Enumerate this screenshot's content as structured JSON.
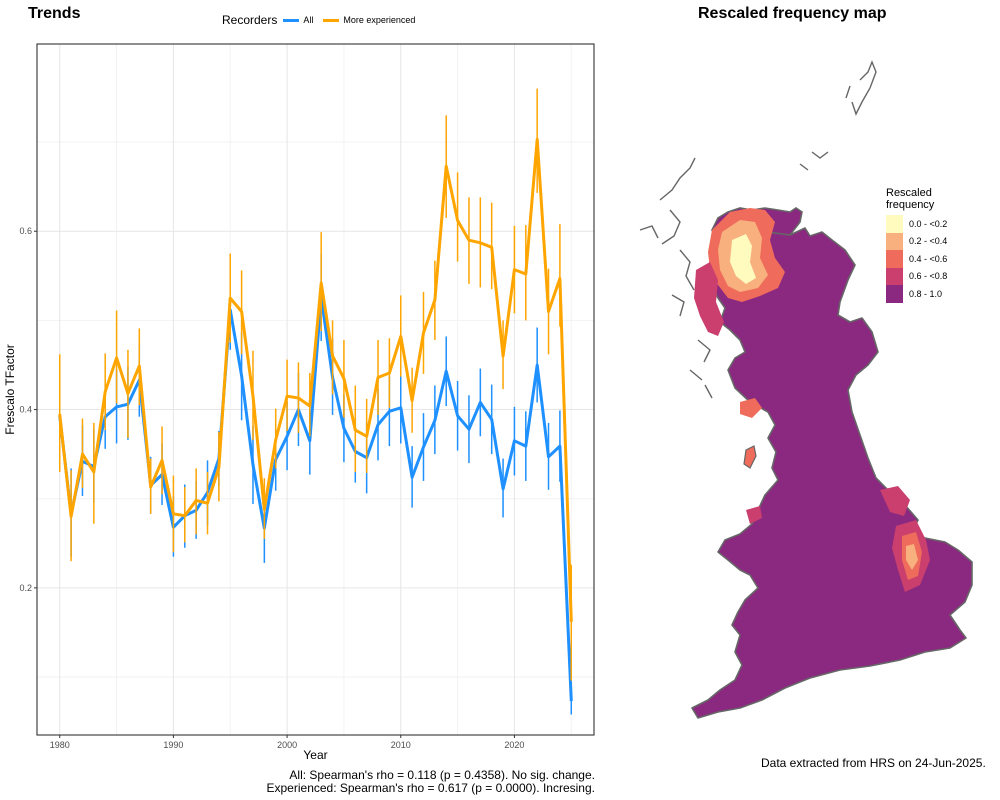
{
  "left_title": "Trends",
  "right_title": "Rescaled frequency map",
  "legend": {
    "title": "Recorders",
    "items": [
      {
        "label": "All",
        "color": "#1E90FF"
      },
      {
        "label": "More experienced",
        "color": "#FFA500"
      }
    ]
  },
  "footnotes": {
    "all": "All: Spearman's rho = 0.118 (p = 0.4358). No sig. change.",
    "experienced": "Experienced: Spearman's rho = 0.617 (p = 0.0000). Incresing."
  },
  "data_extracted": "Data extracted from HRS on 24-Jun-2025.",
  "map_legend": {
    "title_line1": "Rescaled",
    "title_line2": "frequency",
    "items": [
      {
        "label": "0.0 - <0.2",
        "color": "#FFFBBE"
      },
      {
        "label": "0.2 - <0.4",
        "color": "#F9B07F"
      },
      {
        "label": "0.4 - <0.6",
        "color": "#EF6B5B"
      },
      {
        "label": "0.6 - <0.8",
        "color": "#CA3F6E"
      },
      {
        "label": "0.8 - 1.0",
        "color": "#8B2981"
      }
    ]
  },
  "chart_data": {
    "type": "line",
    "title": "Trends",
    "xlabel": "Year",
    "ylabel": "Frescalo TFactor",
    "xlim": [
      1978,
      2027
    ],
    "ylim": [
      0.035,
      0.81
    ],
    "xticks": [
      1980,
      1990,
      2000,
      2010,
      2020
    ],
    "yticks": [
      0.2,
      0.4,
      0.6
    ],
    "grid": true,
    "legend_position": "top",
    "x": [
      1980,
      1981,
      1982,
      1983,
      1984,
      1985,
      1986,
      1987,
      1988,
      1989,
      1990,
      1991,
      1992,
      1993,
      1994,
      1995,
      1996,
      1997,
      1998,
      1999,
      2000,
      2001,
      2002,
      2003,
      2004,
      2005,
      2006,
      2007,
      2008,
      2009,
      2010,
      2011,
      2012,
      2013,
      2014,
      2015,
      2016,
      2017,
      2018,
      2019,
      2020,
      2021,
      2022,
      2023,
      2024,
      2025
    ],
    "series": [
      {
        "name": "All",
        "color": "#1E90FF",
        "values": [
          0.393,
          0.283,
          0.342,
          0.336,
          0.392,
          0.403,
          0.406,
          0.433,
          0.315,
          0.327,
          0.268,
          0.281,
          0.287,
          0.307,
          0.345,
          0.512,
          0.438,
          0.338,
          0.267,
          0.344,
          0.37,
          0.4,
          0.365,
          0.526,
          0.436,
          0.379,
          0.353,
          0.346,
          0.383,
          0.398,
          0.402,
          0.324,
          0.358,
          0.388,
          0.443,
          0.393,
          0.378,
          0.408,
          0.389,
          0.311,
          0.365,
          0.359,
          0.45,
          0.347,
          0.359,
          0.073
        ],
        "lower": [
          0.333,
          0.235,
          0.303,
          0.296,
          0.356,
          0.362,
          0.366,
          0.392,
          0.283,
          0.293,
          0.235,
          0.245,
          0.255,
          0.27,
          0.314,
          0.467,
          0.388,
          0.294,
          0.228,
          0.309,
          0.332,
          0.359,
          0.327,
          0.477,
          0.394,
          0.341,
          0.318,
          0.306,
          0.343,
          0.359,
          0.362,
          0.29,
          0.32,
          0.35,
          0.404,
          0.354,
          0.34,
          0.37,
          0.35,
          0.279,
          0.326,
          0.32,
          0.408,
          0.31,
          0.319,
          0.058
        ],
        "upper": [
          0.454,
          0.334,
          0.382,
          0.378,
          0.428,
          0.445,
          0.448,
          0.474,
          0.347,
          0.362,
          0.303,
          0.316,
          0.32,
          0.343,
          0.376,
          0.556,
          0.487,
          0.382,
          0.307,
          0.379,
          0.409,
          0.441,
          0.403,
          0.575,
          0.479,
          0.417,
          0.389,
          0.386,
          0.423,
          0.437,
          0.442,
          0.359,
          0.396,
          0.427,
          0.482,
          0.432,
          0.416,
          0.446,
          0.428,
          0.345,
          0.403,
          0.398,
          0.492,
          0.385,
          0.399,
          0.09
        ]
      },
      {
        "name": "More experienced",
        "color": "#FFA500",
        "values": [
          0.395,
          0.28,
          0.35,
          0.33,
          0.42,
          0.458,
          0.418,
          0.449,
          0.313,
          0.343,
          0.283,
          0.281,
          0.298,
          0.295,
          0.335,
          0.525,
          0.51,
          0.415,
          0.288,
          0.366,
          0.415,
          0.413,
          0.404,
          0.542,
          0.46,
          0.435,
          0.377,
          0.37,
          0.436,
          0.441,
          0.482,
          0.41,
          0.486,
          0.523,
          0.673,
          0.612,
          0.59,
          0.587,
          0.582,
          0.46,
          0.557,
          0.552,
          0.703,
          0.51,
          0.547,
          0.162
        ],
        "lower": [
          0.33,
          0.23,
          0.312,
          0.272,
          0.377,
          0.407,
          0.368,
          0.405,
          0.283,
          0.305,
          0.24,
          0.251,
          0.26,
          0.26,
          0.297,
          0.475,
          0.462,
          0.366,
          0.255,
          0.334,
          0.376,
          0.374,
          0.37,
          0.488,
          0.417,
          0.391,
          0.33,
          0.329,
          0.394,
          0.402,
          0.437,
          0.374,
          0.44,
          0.478,
          0.615,
          0.566,
          0.541,
          0.537,
          0.535,
          0.423,
          0.508,
          0.5,
          0.643,
          0.462,
          0.493,
          0.096
        ],
        "upper": [
          0.462,
          0.332,
          0.39,
          0.385,
          0.463,
          0.511,
          0.467,
          0.491,
          0.345,
          0.381,
          0.326,
          0.313,
          0.334,
          0.33,
          0.375,
          0.575,
          0.556,
          0.466,
          0.323,
          0.401,
          0.456,
          0.453,
          0.441,
          0.599,
          0.5,
          0.478,
          0.427,
          0.412,
          0.478,
          0.48,
          0.528,
          0.447,
          0.532,
          0.567,
          0.73,
          0.666,
          0.638,
          0.638,
          0.632,
          0.5,
          0.606,
          0.607,
          0.76,
          0.558,
          0.608,
          0.226
        ]
      }
    ]
  }
}
